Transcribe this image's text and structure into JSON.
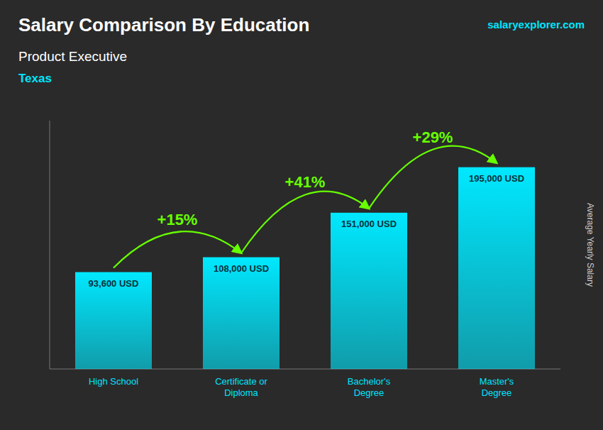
{
  "chart_data": {
    "type": "bar",
    "title": "Salary Comparison By Education",
    "subtitle": "Product Executive",
    "location": "Texas",
    "source": "salaryexplorer.com",
    "y_label": "Average Yearly Salary",
    "categories": [
      "High School",
      "Certificate or\nDiploma",
      "Bachelor's\nDegree",
      "Master's\nDegree"
    ],
    "values": [
      93600,
      108000,
      151000,
      195000
    ],
    "value_labels": [
      "93,600 USD",
      "108,000 USD",
      "151,000 USD",
      "195,000 USD"
    ],
    "data_labels": true,
    "color": "#00e8ff",
    "annotations": [
      {
        "text": "+15%",
        "color": "#66ff00"
      },
      {
        "text": "+41%",
        "color": "#66ff00"
      },
      {
        "text": "+29%",
        "color": "#66ff00"
      }
    ],
    "ylim": [
      0,
      240000
    ],
    "yticks": [],
    "tick_labels": "x",
    "grid": false
  }
}
